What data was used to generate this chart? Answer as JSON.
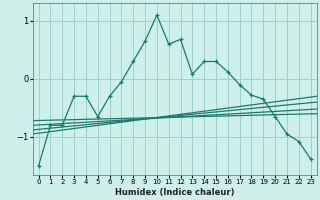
{
  "xlabel": "Humidex (Indice chaleur)",
  "bg_color": "#cef0ea",
  "grid_color": "#9ecfca",
  "line_color": "#1a7a6e",
  "xlim": [
    -0.5,
    23.5
  ],
  "ylim": [
    -1.65,
    1.3
  ],
  "yticks": [
    -1,
    0,
    1
  ],
  "xticks": [
    0,
    1,
    2,
    3,
    4,
    5,
    6,
    7,
    8,
    9,
    10,
    11,
    12,
    13,
    14,
    15,
    16,
    17,
    18,
    19,
    20,
    21,
    22,
    23
  ],
  "main_x": [
    0,
    1,
    2,
    3,
    4,
    5,
    6,
    7,
    8,
    9,
    10,
    11,
    12,
    13,
    14,
    15,
    16,
    17,
    18,
    19,
    20,
    21,
    22,
    23
  ],
  "main_y": [
    -1.5,
    -0.8,
    -0.8,
    -0.3,
    -0.3,
    -0.65,
    -0.3,
    -0.05,
    0.3,
    0.65,
    1.1,
    0.6,
    0.68,
    0.08,
    0.3,
    0.3,
    0.12,
    -0.1,
    -0.28,
    -0.35,
    -0.65,
    -0.95,
    -1.08,
    -1.38
  ],
  "line_straight": [
    [
      -0.5,
      23.5,
      -0.95,
      -0.3
    ],
    [
      -0.5,
      23.5,
      -0.88,
      -0.4
    ],
    [
      -0.5,
      23.5,
      -0.8,
      -0.52
    ],
    [
      -0.5,
      23.5,
      -0.72,
      -0.6
    ]
  ]
}
